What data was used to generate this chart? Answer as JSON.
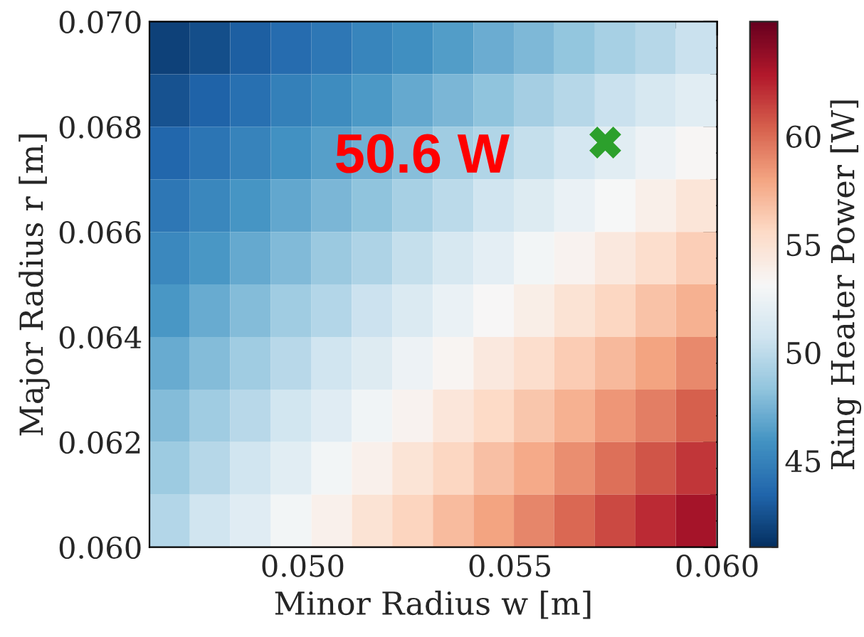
{
  "chart_data": {
    "type": "heatmap",
    "xlabel": "Minor Radius w [m]",
    "ylabel": "Major Radius r [m]",
    "clabel": "Ring Heater Power [W]",
    "x": [
      0.04679,
      0.04776,
      0.04874,
      0.04972,
      0.0507,
      0.05167,
      0.05265,
      0.05363,
      0.05461,
      0.05558,
      0.05656,
      0.05754,
      0.05852,
      0.05949
    ],
    "cells": [
      [
        41.8,
        42.4,
        43.1,
        43.8,
        44.4,
        45.1,
        45.7,
        46.4,
        47.1,
        47.7,
        48.4,
        49.1,
        49.7,
        50.4
      ],
      [
        42.6,
        43.3,
        44.0,
        44.8,
        45.5,
        46.2,
        46.9,
        47.6,
        48.3,
        49.0,
        49.7,
        50.4,
        51.1,
        51.8
      ],
      [
        43.5,
        44.3,
        45.0,
        45.8,
        46.5,
        47.3,
        48.0,
        48.8,
        49.5,
        50.3,
        51.0,
        51.8,
        52.5,
        53.3
      ],
      [
        44.4,
        45.2,
        46.0,
        46.8,
        47.6,
        48.3,
        49.1,
        49.9,
        50.7,
        51.5,
        52.3,
        53.1,
        53.9,
        54.7
      ],
      [
        45.3,
        46.1,
        46.9,
        47.8,
        48.6,
        49.4,
        50.3,
        51.1,
        52.0,
        52.8,
        53.6,
        54.4,
        55.3,
        56.1
      ],
      [
        46.1,
        47.0,
        47.9,
        48.8,
        49.6,
        50.5,
        51.4,
        52.3,
        53.2,
        54.0,
        54.9,
        55.8,
        56.7,
        57.5
      ],
      [
        47.0,
        47.9,
        48.8,
        49.8,
        50.7,
        51.6,
        52.5,
        53.4,
        54.4,
        55.3,
        56.2,
        57.1,
        58.0,
        59.0
      ],
      [
        47.9,
        48.8,
        49.8,
        50.8,
        51.7,
        52.7,
        53.6,
        54.6,
        55.6,
        56.5,
        57.5,
        58.5,
        59.4,
        60.4
      ],
      [
        48.7,
        49.7,
        50.7,
        51.8,
        52.8,
        53.8,
        54.8,
        55.8,
        56.8,
        57.8,
        58.8,
        59.8,
        60.8,
        61.8
      ],
      [
        49.6,
        50.7,
        51.7,
        52.8,
        53.8,
        54.9,
        55.9,
        57.0,
        58.0,
        59.1,
        60.1,
        61.2,
        62.2,
        63.3
      ]
    ],
    "clim": [
      41,
      65.3
    ],
    "cticks": [
      45,
      50,
      55,
      60
    ],
    "xlim": [
      0.0463,
      0.06
    ],
    "ylim": [
      0.06,
      0.07
    ],
    "xticks": [
      {
        "value": 0.05,
        "label": "0.050"
      },
      {
        "value": 0.055,
        "label": "0.055"
      },
      {
        "value": 0.06,
        "label": "0.060"
      }
    ],
    "yticks": [
      {
        "value": 0.06,
        "label": "0.060"
      },
      {
        "value": 0.062,
        "label": "0.062"
      },
      {
        "value": 0.064,
        "label": "0.064"
      },
      {
        "value": 0.066,
        "label": "0.066"
      },
      {
        "value": 0.068,
        "label": "0.068"
      },
      {
        "value": 0.07,
        "label": "0.070"
      }
    ],
    "series": [
      {
        "type": "scatter",
        "x": [
          0.0573
        ],
        "values": [
          0.0677
        ],
        "color": "#2ca02c",
        "marker": "cross"
      }
    ],
    "annotations": [
      "50.6 W"
    ]
  }
}
